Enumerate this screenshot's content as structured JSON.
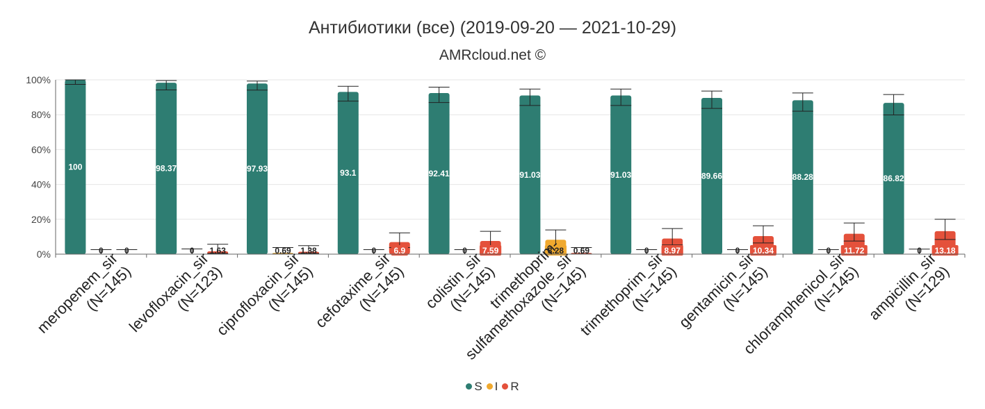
{
  "chart_data": {
    "type": "bar",
    "title": "Антибиотики (все) (2019-09-20 — 2021-10-29)",
    "subtitle": "AMRcloud.net ©",
    "ylim": [
      0,
      100
    ],
    "yticks": [
      "0%",
      "20%",
      "40%",
      "60%",
      "80%",
      "100%"
    ],
    "grid": true,
    "legend_position": "bottom",
    "categories": [
      "meropenem_sir (N=145)",
      "levofloxacin_sir (N=123)",
      "ciprofloxacin_sir (N=145)",
      "cefotaxime_sir (N=145)",
      "colistin_sir (N=145)",
      "trimethoprim-sulfamethoxazole_sir (N=145)",
      "trimethoprim_sir (N=145)",
      "gentamicin_sir (N=145)",
      "chloramphenicol_sir (N=145)",
      "ampicillin_sir (N=129)"
    ],
    "category_lines": [
      [
        "meropenem_sir",
        "(N=145)"
      ],
      [
        "levofloxacin_sir",
        "(N=123)"
      ],
      [
        "ciprofloxacin_sir",
        "(N=145)"
      ],
      [
        "cefotaxime_sir",
        "(N=145)"
      ],
      [
        "colistin_sir",
        "(N=145)"
      ],
      [
        "trimethoprim-",
        "sulfamethoxazole_sir",
        "(N=145)"
      ],
      [
        "trimethoprim_sir",
        "(N=145)"
      ],
      [
        "gentamicin_sir",
        "(N=145)"
      ],
      [
        "chloramphenicol_sir",
        "(N=145)"
      ],
      [
        "ampicillin_sir",
        "(N=129)"
      ]
    ],
    "series": [
      {
        "name": "S",
        "color": "#2e7d72",
        "values": [
          100,
          98.37,
          97.93,
          93.1,
          92.41,
          91.03,
          91.03,
          89.66,
          88.28,
          86.82
        ],
        "labels": [
          "100",
          "98.37",
          "97.93",
          "93.1",
          "92.41",
          "91.03",
          "91.03",
          "89.66",
          "88.28",
          "86.82"
        ],
        "ci": [
          [
            97.4,
            100
          ],
          [
            94.2,
            99.6
          ],
          [
            94.1,
            99.3
          ],
          [
            87.8,
            96.3
          ],
          [
            87.0,
            95.8
          ],
          [
            85.3,
            94.7
          ],
          [
            85.3,
            94.7
          ],
          [
            83.6,
            93.6
          ],
          [
            82.0,
            92.5
          ],
          [
            79.9,
            91.6
          ]
        ]
      },
      {
        "name": "I",
        "color": "#f0a92e",
        "values": [
          0,
          0,
          0.69,
          0,
          0,
          8.28,
          0,
          0,
          0,
          0
        ],
        "labels": [
          "0",
          "0",
          "0.69",
          "0",
          "0",
          "8.28",
          "0",
          "0",
          "0",
          "0"
        ],
        "ci": [
          [
            0,
            2.6
          ],
          [
            0,
            3.0
          ],
          [
            0.1,
            3.8
          ],
          [
            0,
            2.6
          ],
          [
            0,
            2.6
          ],
          [
            4.8,
            13.9
          ],
          [
            0,
            2.6
          ],
          [
            0,
            2.6
          ],
          [
            0,
            2.6
          ],
          [
            0,
            2.9
          ]
        ]
      },
      {
        "name": "R",
        "color": "#e4513b",
        "values": [
          0,
          1.63,
          1.38,
          6.9,
          7.59,
          0.69,
          8.97,
          10.34,
          11.72,
          13.18
        ],
        "labels": [
          "0",
          "1.63",
          "1.38",
          "6.9",
          "7.59",
          "0.69",
          "8.97",
          "10.34",
          "11.72",
          "13.18"
        ],
        "ci": [
          [
            0,
            2.6
          ],
          [
            0.4,
            5.7
          ],
          [
            0.4,
            4.9
          ],
          [
            3.8,
            12.2
          ],
          [
            4.3,
            13.1
          ],
          [
            0.1,
            3.8
          ],
          [
            5.3,
            14.7
          ],
          [
            6.4,
            16.3
          ],
          [
            7.5,
            17.9
          ],
          [
            8.4,
            20.0
          ]
        ]
      }
    ]
  }
}
